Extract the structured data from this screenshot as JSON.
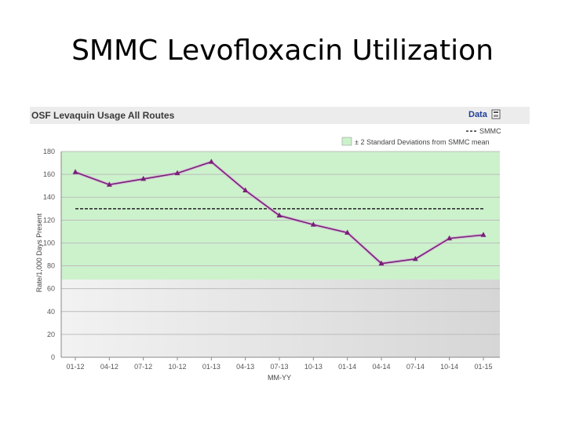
{
  "slide": {
    "title": "SMMC Levofloxacin Utilization"
  },
  "panel": {
    "header_title": "OSF Levaquin Usage All Routes",
    "data_label": "Data"
  },
  "chart_data": {
    "type": "line",
    "title": "OSF Levaquin Usage All Routes",
    "xlabel": "MM-YY",
    "ylabel": "Rate/1,000 Days Present",
    "categories": [
      "01-12",
      "04-12",
      "07-12",
      "10-12",
      "01-13",
      "04-13",
      "07-13",
      "10-13",
      "01-14",
      "04-14",
      "07-14",
      "10-14",
      "01-15"
    ],
    "ylim": [
      0,
      180
    ],
    "yticks": [
      0,
      20,
      40,
      60,
      80,
      100,
      120,
      140,
      160,
      180
    ],
    "ytick_labels": [
      "0",
      "20",
      "40",
      "60",
      "80",
      "100",
      "120",
      "140",
      "160",
      "180"
    ],
    "series": [
      {
        "values": [
          162,
          151,
          156,
          161,
          171,
          146,
          124,
          116,
          109,
          82,
          86,
          104,
          107
        ],
        "color": "#7a1f7a"
      }
    ],
    "mean": {
      "name": "SMMC",
      "value": 130,
      "color": "#333333"
    },
    "band": {
      "name": "± 2 Standard Deviations from SMMC mean",
      "low": 68,
      "high": 180,
      "color": "#ccf2cc"
    },
    "grid": true,
    "legend_position": "top-right"
  },
  "colors": {
    "plot_bg_below_band": "#e2e2e2",
    "header_bg": "#ececec"
  },
  "icons": [
    "export-icon"
  ]
}
